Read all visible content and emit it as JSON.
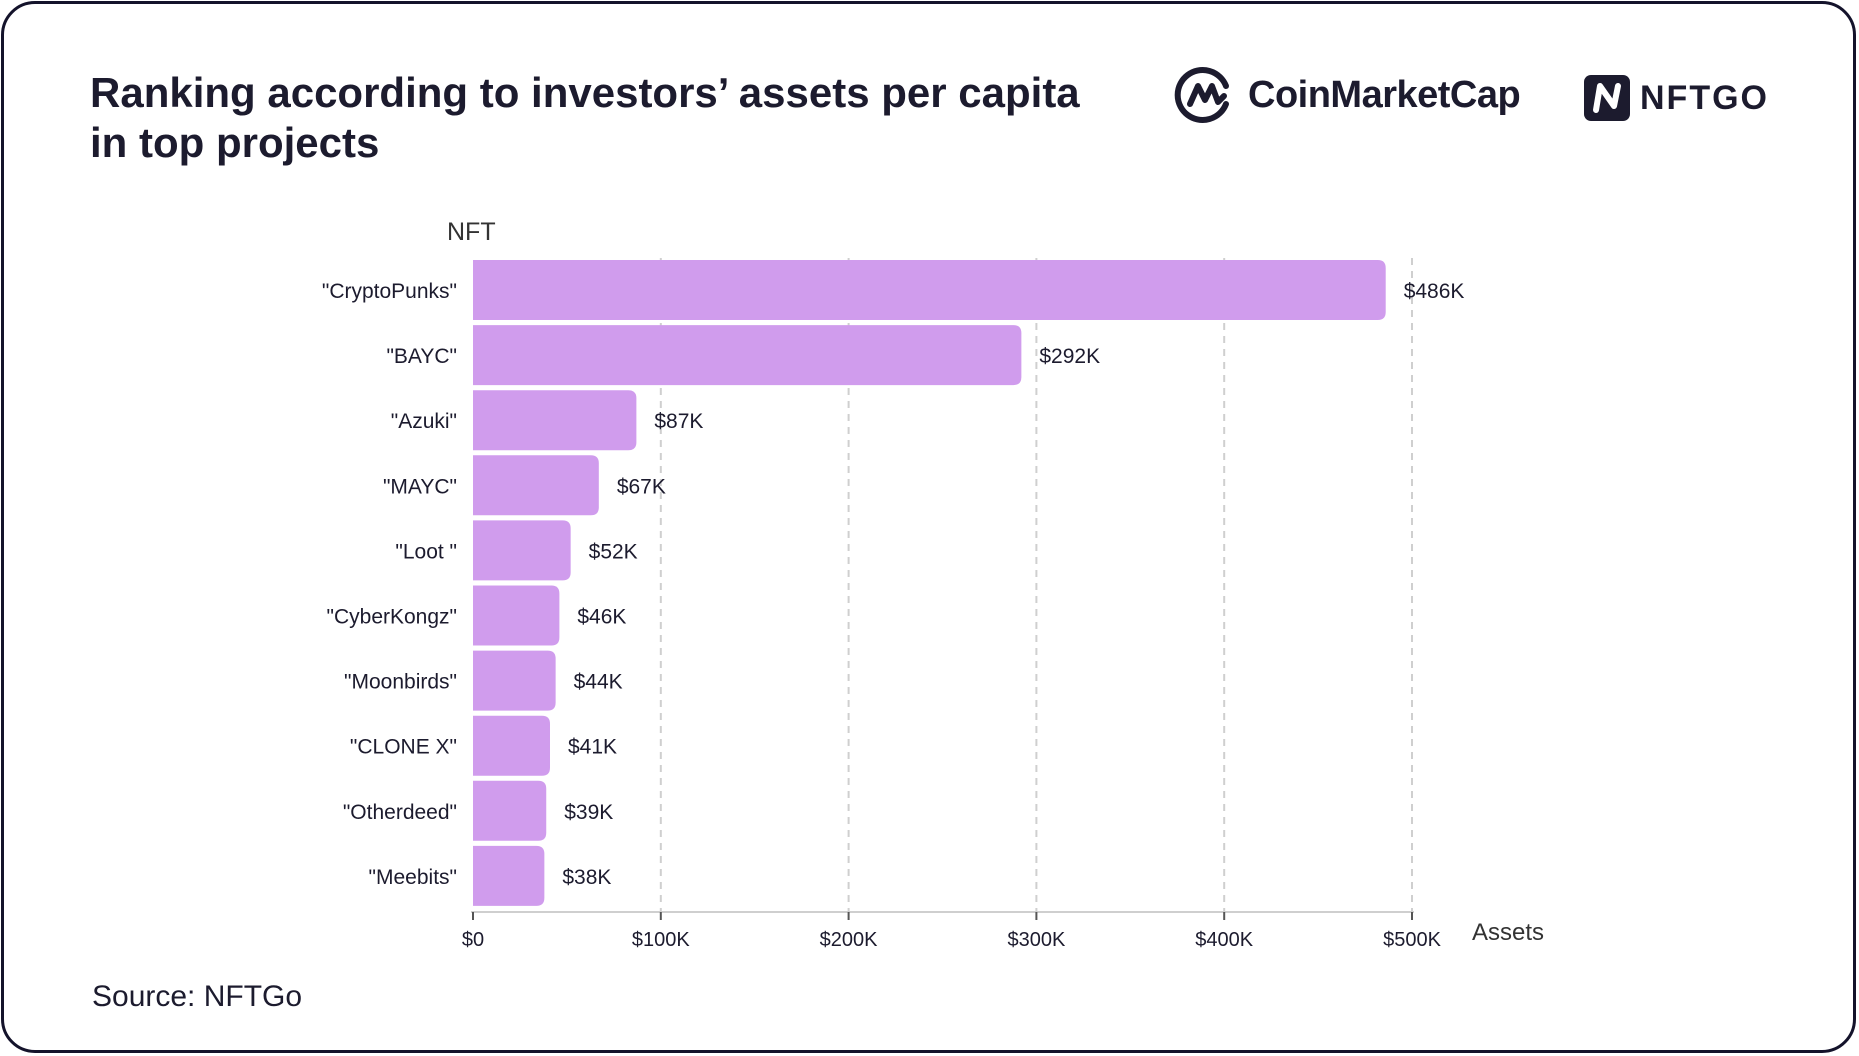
{
  "header": {
    "title_line1": "Ranking according to investors’ assets per capita",
    "title_line2": "in top projects"
  },
  "logos": {
    "coinmarketcap": "CoinMarketCap",
    "nftgo": "NFTGO"
  },
  "footer": {
    "source": "Source: NFTGo"
  },
  "colors": {
    "bar": "#d09ced",
    "grid": "#cfcfcf",
    "text": "#1c1b2e",
    "border": "#14132b"
  },
  "chart_data": {
    "type": "bar",
    "orientation": "horizontal",
    "ylabel": "NFT",
    "xlabel": "Assets",
    "categories": [
      "\"CryptoPunks\"",
      "\"BAYC\"",
      "\"Azuki\"",
      "\"MAYC\"",
      "\"Loot \"",
      "\"CyberKongz\"",
      "\"Moonbirds\"",
      "\"CLONE X\"",
      "\"Otherdeed\"",
      "\"Meebits\""
    ],
    "values": [
      486000,
      292000,
      87000,
      67000,
      52000,
      46000,
      44000,
      41000,
      39000,
      38000
    ],
    "value_labels": [
      "$486K",
      "$292K",
      "$87K",
      "$67K",
      "$52K",
      "$46K",
      "$44K",
      "$41K",
      "$39K",
      "$38K"
    ],
    "xlim": [
      0,
      500000
    ],
    "xticks": [
      0,
      100000,
      200000,
      300000,
      400000,
      500000
    ],
    "xtick_labels": [
      "$0",
      "$100K",
      "$200K",
      "$300K",
      "$400K",
      "$500K"
    ],
    "grid": "vertical dashed"
  }
}
